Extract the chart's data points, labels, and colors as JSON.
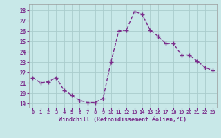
{
  "x": [
    0,
    1,
    2,
    3,
    4,
    5,
    6,
    7,
    8,
    9,
    10,
    11,
    12,
    13,
    14,
    15,
    16,
    17,
    18,
    19,
    20,
    21,
    22,
    23
  ],
  "y": [
    21.5,
    21.0,
    21.1,
    21.5,
    20.3,
    19.8,
    19.3,
    19.1,
    19.1,
    19.5,
    23.0,
    26.0,
    26.1,
    27.9,
    27.6,
    26.1,
    25.5,
    24.8,
    24.8,
    23.7,
    23.7,
    23.1,
    22.5,
    22.2
  ],
  "line_color": "#7b2d8b",
  "marker": "+",
  "marker_size": 4.0,
  "marker_lw": 1.0,
  "xlabel": "Windchill (Refroidissement éolien,°C)",
  "ytick_labels": [
    "19",
    "20",
    "21",
    "22",
    "23",
    "24",
    "25",
    "26",
    "27",
    "28"
  ],
  "ytick_vals": [
    19,
    20,
    21,
    22,
    23,
    24,
    25,
    26,
    27,
    28
  ],
  "xlim": [
    -0.5,
    23.5
  ],
  "ylim": [
    18.6,
    28.6
  ],
  "bg_color": "#c8e8e8",
  "grid_color": "#aacccc",
  "tick_label_color": "#7b2d8b",
  "xlabel_color": "#7b2d8b",
  "line_width": 1.0,
  "linestyle": "--"
}
